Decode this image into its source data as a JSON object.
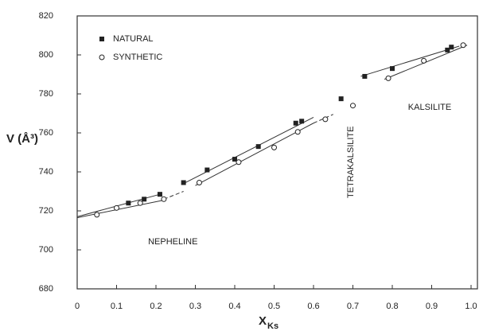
{
  "chart_data": {
    "type": "scatter",
    "x_label": "X",
    "x_label_subscript": "Ks",
    "y_label": "V (Å³)",
    "xlim": [
      0,
      1.0
    ],
    "ylim": [
      680,
      820
    ],
    "xticks": [
      0,
      0.1,
      0.2,
      0.3,
      0.4,
      0.5,
      0.6,
      0.7,
      0.8,
      0.9,
      {
        "value": 1.0,
        "label": "1.0"
      }
    ],
    "yticks": [
      680,
      700,
      720,
      740,
      760,
      780,
      800,
      820
    ],
    "legend": "upper left",
    "series": [
      {
        "name": "NATURAL",
        "marker": "square",
        "color": "#222222",
        "x": [
          0.13,
          0.17,
          0.21,
          0.27,
          0.33,
          0.4,
          0.46,
          0.555,
          0.57,
          0.67,
          0.73,
          0.8,
          0.94,
          0.95
        ],
        "values": [
          724,
          726,
          728.5,
          734.5,
          741,
          746.5,
          753,
          765,
          766,
          777.5,
          789,
          793,
          802.5,
          804
        ]
      },
      {
        "name": "SYNTHETIC",
        "marker": "circle",
        "color": "#222222",
        "x": [
          0.05,
          0.1,
          0.16,
          0.22,
          0.31,
          0.41,
          0.5,
          0.56,
          0.63,
          0.7,
          0.79,
          0.88,
          0.98
        ],
        "values": [
          718,
          721.5,
          724,
          726,
          734.5,
          745,
          752.5,
          760.5,
          767,
          774,
          788,
          797,
          805
        ]
      }
    ],
    "fit_lines": [
      {
        "x": [
          0,
          0.21
        ],
        "values": [
          717,
          728.5
        ],
        "dashed": false
      },
      {
        "x": [
          0.27,
          0.6
        ],
        "values": [
          734,
          768
        ],
        "dashed": false
      },
      {
        "x": [
          0.72,
          0.97
        ],
        "values": [
          789,
          804.5
        ],
        "dashed": false
      },
      {
        "x": [
          0,
          0.22
        ],
        "values": [
          716.5,
          725.5
        ],
        "dashed": false
      },
      {
        "x": [
          0.22,
          0.27
        ],
        "values": [
          726,
          730
        ],
        "dashed": true
      },
      {
        "x": [
          0.3,
          0.6
        ],
        "values": [
          733,
          765
        ],
        "dashed": false
      },
      {
        "x": [
          0.6,
          0.65
        ],
        "values": [
          765,
          769.5
        ],
        "dashed": true
      },
      {
        "x": [
          0.78,
          0.99
        ],
        "values": [
          787.5,
          805
        ],
        "dashed": false
      }
    ],
    "annotations": [
      {
        "text": "NEPHELINE",
        "x": 0.18,
        "y": 704,
        "rotate": 0
      },
      {
        "text": "TETRAKALSILITE",
        "x": 0.695,
        "y": 745,
        "rotate": -90
      },
      {
        "text": "KALSILITE",
        "x": 0.84,
        "y": 773,
        "rotate": 0
      }
    ]
  }
}
